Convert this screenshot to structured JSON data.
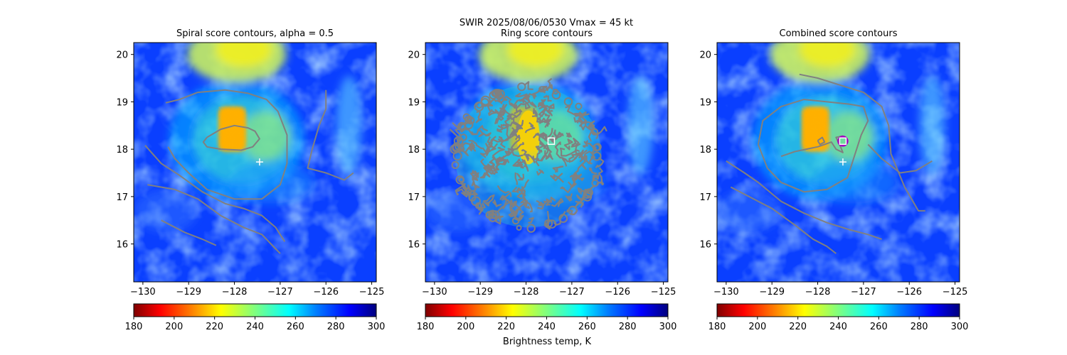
{
  "suptitle": "SWIR  2025/08/06/0530    Vmax = 45 kt",
  "colorbar": {
    "ticks": [
      "180",
      "200",
      "220",
      "240",
      "260",
      "280",
      "300"
    ],
    "label": "Brightness temp, K",
    "range": [
      180,
      300
    ],
    "colormap": "jet_r",
    "colors": [
      "#7f0000",
      "#ff0000",
      "#ff7f00",
      "#ffff00",
      "#7fff7f",
      "#00ffff",
      "#007fff",
      "#0000ff",
      "#00007f"
    ]
  },
  "chart_data": [
    {
      "type": "heatmap",
      "title": "Spiral score contours, alpha =  0.5",
      "xlim": [
        -130.2,
        -124.9
      ],
      "ylim": [
        15.2,
        20.25
      ],
      "xticks": [
        "−130",
        "−129",
        "−128",
        "−127",
        "−126",
        "−125"
      ],
      "yticks": [
        "16",
        "17",
        "18",
        "19",
        "20"
      ],
      "contour_color": "#808080",
      "markers": [
        {
          "kind": "plus",
          "lon": -127.45,
          "lat": 17.73
        }
      ],
      "contours": [
        [
          [
            -129.5,
            18.98
          ],
          [
            -129.2,
            19.05
          ],
          [
            -128.8,
            19.2
          ],
          [
            -128.2,
            19.25
          ],
          [
            -127.7,
            19.18
          ],
          [
            -127.3,
            19.05
          ],
          [
            -127.05,
            18.8
          ],
          [
            -126.85,
            18.3
          ],
          [
            -126.85,
            17.7
          ],
          [
            -127.0,
            17.25
          ],
          [
            -127.4,
            16.95
          ],
          [
            -128.0,
            16.95
          ],
          [
            -128.6,
            17.15
          ],
          [
            -129.0,
            17.5
          ],
          [
            -129.3,
            17.8
          ],
          [
            -129.45,
            18.05
          ]
        ],
        [
          [
            -128.6,
            18.25
          ],
          [
            -128.3,
            18.42
          ],
          [
            -128.0,
            18.5
          ],
          [
            -127.7,
            18.45
          ],
          [
            -127.55,
            18.38
          ],
          [
            -127.45,
            18.22
          ],
          [
            -127.6,
            18.05
          ],
          [
            -127.85,
            17.98
          ],
          [
            -128.3,
            18.0
          ],
          [
            -128.6,
            18.05
          ],
          [
            -128.68,
            18.15
          ],
          [
            -128.6,
            18.25
          ]
        ],
        [
          [
            -126.0,
            19.25
          ],
          [
            -126.0,
            18.85
          ],
          [
            -126.15,
            18.5
          ],
          [
            -126.3,
            18.0
          ],
          [
            -126.4,
            17.6
          ],
          [
            -126.0,
            17.5
          ],
          [
            -125.6,
            17.35
          ],
          [
            -125.4,
            17.5
          ]
        ],
        [
          [
            -129.95,
            18.08
          ],
          [
            -129.6,
            17.7
          ],
          [
            -129.2,
            17.45
          ],
          [
            -128.7,
            17.1
          ],
          [
            -128.2,
            16.85
          ],
          [
            -127.8,
            16.75
          ],
          [
            -127.4,
            16.6
          ],
          [
            -127.1,
            16.35
          ],
          [
            -126.9,
            16.05
          ]
        ],
        [
          [
            -129.9,
            17.25
          ],
          [
            -129.3,
            17.15
          ],
          [
            -128.8,
            16.95
          ],
          [
            -128.3,
            16.6
          ],
          [
            -127.8,
            16.35
          ],
          [
            -127.4,
            16.2
          ],
          [
            -127.15,
            15.95
          ],
          [
            -127.0,
            15.8
          ]
        ],
        [
          [
            -129.6,
            16.5
          ],
          [
            -129.1,
            16.25
          ],
          [
            -128.7,
            16.1
          ],
          [
            -128.4,
            15.97
          ]
        ]
      ]
    },
    {
      "type": "heatmap",
      "title": "Ring score contours",
      "xlim": [
        -130.2,
        -124.9
      ],
      "ylim": [
        15.2,
        20.25
      ],
      "xticks": [
        "−130",
        "−129",
        "−128",
        "−127",
        "−126",
        "−125"
      ],
      "yticks": [
        "16",
        "17",
        "18",
        "19",
        "20"
      ],
      "contour_color": "#808080",
      "markers": [
        {
          "kind": "square",
          "lon": -127.45,
          "lat": 18.17
        }
      ],
      "ring_region": {
        "center_lon": -127.95,
        "center_lat": 17.85,
        "radius_lon": 1.6,
        "radius_lat": 1.5
      }
    },
    {
      "type": "heatmap",
      "title": "Combined score contours",
      "xlim": [
        -130.2,
        -124.9
      ],
      "ylim": [
        15.2,
        20.25
      ],
      "xticks": [
        "−130",
        "−129",
        "−128",
        "−127",
        "−126",
        "−125"
      ],
      "yticks": [
        "16",
        "17",
        "18",
        "19",
        "20"
      ],
      "contour_color": "#808080",
      "markers": [
        {
          "kind": "plus",
          "lon": -127.45,
          "lat": 17.73
        },
        {
          "kind": "circle",
          "lon": -127.45,
          "lat": 18.17,
          "color": "#a000c0"
        },
        {
          "kind": "square",
          "lon": -127.45,
          "lat": 18.17
        }
      ],
      "contours": [
        [
          [
            -128.4,
            19.58
          ],
          [
            -128.0,
            19.5
          ],
          [
            -127.5,
            19.35
          ],
          [
            -127.0,
            19.2
          ],
          [
            -126.6,
            18.9
          ],
          [
            -126.45,
            18.5
          ],
          [
            -126.4,
            17.9
          ],
          [
            -126.1,
            17.2
          ],
          [
            -125.8,
            16.7
          ],
          [
            -125.65,
            16.7
          ]
        ],
        [
          [
            -129.3,
            18.1
          ],
          [
            -129.2,
            18.6
          ],
          [
            -128.8,
            18.9
          ],
          [
            -128.3,
            19.05
          ],
          [
            -127.8,
            19.0
          ],
          [
            -127.3,
            18.95
          ],
          [
            -127.0,
            18.9
          ],
          [
            -126.9,
            18.6
          ],
          [
            -127.05,
            18.3
          ],
          [
            -127.2,
            17.85
          ],
          [
            -127.35,
            17.4
          ],
          [
            -127.8,
            17.15
          ],
          [
            -128.3,
            17.1
          ],
          [
            -128.8,
            17.3
          ],
          [
            -129.1,
            17.6
          ],
          [
            -129.3,
            18.1
          ]
        ],
        [
          [
            -128.0,
            18.18
          ],
          [
            -127.9,
            18.25
          ],
          [
            -127.85,
            18.15
          ],
          [
            -127.95,
            18.1
          ],
          [
            -128.0,
            18.18
          ]
        ],
        [
          [
            -128.8,
            17.85
          ],
          [
            -128.5,
            17.95
          ],
          [
            -128.0,
            18.05
          ],
          [
            -127.7,
            18.15
          ],
          [
            -127.6,
            18.0
          ],
          [
            -127.45,
            17.93
          ],
          [
            -127.5,
            18.05
          ],
          [
            -127.6,
            18.25
          ],
          [
            -127.45,
            18.28
          ]
        ],
        [
          [
            -126.9,
            18.1
          ],
          [
            -126.6,
            17.8
          ],
          [
            -126.2,
            17.5
          ],
          [
            -125.85,
            17.55
          ],
          [
            -125.5,
            17.75
          ]
        ],
        [
          [
            -130.0,
            17.75
          ],
          [
            -129.6,
            17.5
          ],
          [
            -129.3,
            17.3
          ],
          [
            -128.8,
            16.9
          ],
          [
            -128.3,
            16.65
          ],
          [
            -127.8,
            16.45
          ],
          [
            -127.3,
            16.3
          ],
          [
            -126.9,
            16.2
          ],
          [
            -126.6,
            16.1
          ]
        ],
        [
          [
            -129.9,
            17.2
          ],
          [
            -129.5,
            17.0
          ],
          [
            -129.0,
            16.75
          ],
          [
            -128.5,
            16.4
          ],
          [
            -128.1,
            16.1
          ],
          [
            -127.8,
            15.95
          ],
          [
            -127.6,
            15.8
          ]
        ]
      ]
    }
  ]
}
